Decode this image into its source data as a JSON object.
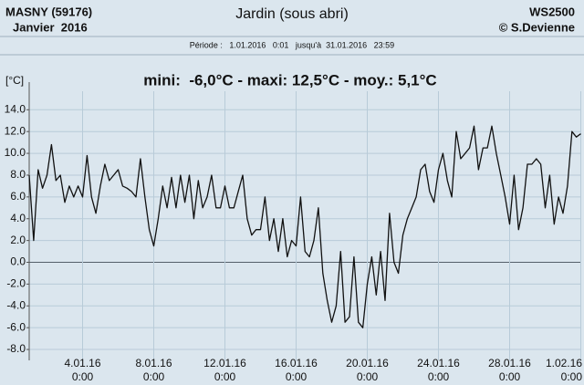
{
  "chart_data": {
    "type": "line",
    "station": "MASNY (59176)",
    "period_label": "Janvier  2016",
    "title": "Jardin (sous abri)",
    "device": "WS2500",
    "author": "© S.Devienne",
    "period": "Période :   1.01.2016   0:01   jusqu'à  31.01.2016   23:59",
    "subtitle": "mini:  -6,0°C - maxi: 12,5°C - moy.: 5,1°C",
    "y_label": "[°C]",
    "xlim": [
      "1.01.16 0:00",
      "1.02.16 0:00"
    ],
    "ylim": [
      -9,
      15.7
    ],
    "grid": true,
    "color": "#111111",
    "xticks": [
      "4.01.16 0:00",
      "8.01.16 0:00",
      "12.01.16 0:00",
      "16.01.16 0:00",
      "20.01.16 0:00",
      "24.01.16 0:00",
      "28.01.16 0:00",
      "1.02.16 0:00"
    ],
    "yticks": [
      {
        "value": 14,
        "label": "14.0"
      },
      {
        "value": 12,
        "label": "12.0"
      },
      {
        "value": 10,
        "label": "10.0"
      },
      {
        "value": 8,
        "label": "8.0"
      },
      {
        "value": 6,
        "label": "6.0"
      },
      {
        "value": 4,
        "label": "4.0"
      },
      {
        "value": 2,
        "label": "2.0"
      },
      {
        "value": 0,
        "label": "0.0"
      },
      {
        "value": -2,
        "label": "-2.0"
      },
      {
        "value": -4,
        "label": "-4.0"
      },
      {
        "value": -6,
        "label": "-6.0"
      },
      {
        "value": -8,
        "label": "-8.0"
      }
    ],
    "x": [
      "1.01.16 0:00",
      "1.01.16 6:00",
      "1.01.16 12:00",
      "1.01.16 18:00",
      "2.01.16 0:00",
      "2.01.16 6:00",
      "2.01.16 12:00",
      "2.01.16 18:00",
      "3.01.16 0:00",
      "3.01.16 6:00",
      "3.01.16 12:00",
      "3.01.16 18:00",
      "4.01.16 0:00",
      "4.01.16 6:00",
      "4.01.16 12:00",
      "4.01.16 18:00",
      "5.01.16 0:00",
      "5.01.16 6:00",
      "5.01.16 12:00",
      "5.01.16 18:00",
      "6.01.16 0:00",
      "6.01.16 6:00",
      "6.01.16 12:00",
      "6.01.16 18:00",
      "7.01.16 0:00",
      "7.01.16 6:00",
      "7.01.16 12:00",
      "7.01.16 18:00",
      "8.01.16 0:00",
      "8.01.16 6:00",
      "8.01.16 12:00",
      "8.01.16 18:00",
      "9.01.16 0:00",
      "9.01.16 6:00",
      "9.01.16 12:00",
      "9.01.16 18:00",
      "10.01.16 0:00",
      "10.01.16 6:00",
      "10.01.16 12:00",
      "10.01.16 18:00",
      "11.01.16 0:00",
      "11.01.16 6:00",
      "11.01.16 12:00",
      "11.01.16 18:00",
      "12.01.16 0:00",
      "12.01.16 6:00",
      "12.01.16 12:00",
      "12.01.16 18:00",
      "13.01.16 0:00",
      "13.01.16 6:00",
      "13.01.16 12:00",
      "13.01.16 18:00",
      "14.01.16 0:00",
      "14.01.16 6:00",
      "14.01.16 12:00",
      "14.01.16 18:00",
      "15.01.16 0:00",
      "15.01.16 6:00",
      "15.01.16 12:00",
      "15.01.16 18:00",
      "16.01.16 0:00",
      "16.01.16 6:00",
      "16.01.16 12:00",
      "16.01.16 18:00",
      "17.01.16 0:00",
      "17.01.16 6:00",
      "17.01.16 12:00",
      "17.01.16 18:00",
      "18.01.16 0:00",
      "18.01.16 6:00",
      "18.01.16 12:00",
      "18.01.16 18:00",
      "19.01.16 0:00",
      "19.01.16 6:00",
      "19.01.16 12:00",
      "19.01.16 18:00",
      "20.01.16 0:00",
      "20.01.16 6:00",
      "20.01.16 12:00",
      "20.01.16 18:00",
      "21.01.16 0:00",
      "21.01.16 6:00",
      "21.01.16 12:00",
      "21.01.16 18:00",
      "22.01.16 0:00",
      "22.01.16 6:00",
      "22.01.16 12:00",
      "22.01.16 18:00",
      "23.01.16 0:00",
      "23.01.16 6:00",
      "23.01.16 12:00",
      "23.01.16 18:00",
      "24.01.16 0:00",
      "24.01.16 6:00",
      "24.01.16 12:00",
      "24.01.16 18:00",
      "25.01.16 0:00",
      "25.01.16 6:00",
      "25.01.16 12:00",
      "25.01.16 18:00",
      "26.01.16 0:00",
      "26.01.16 6:00",
      "26.01.16 12:00",
      "26.01.16 18:00",
      "27.01.16 0:00",
      "27.01.16 6:00",
      "27.01.16 12:00",
      "27.01.16 18:00",
      "28.01.16 0:00",
      "28.01.16 6:00",
      "28.01.16 12:00",
      "28.01.16 18:00",
      "29.01.16 0:00",
      "29.01.16 6:00",
      "29.01.16 12:00",
      "29.01.16 18:00",
      "30.01.16 0:00",
      "30.01.16 6:00",
      "30.01.16 12:00",
      "30.01.16 18:00",
      "31.01.16 0:00",
      "31.01.16 6:00",
      "31.01.16 12:00",
      "31.01.16 18:00",
      "1.02.16 0:00"
    ],
    "values": [
      8,
      2,
      8.5,
      6.8,
      8,
      10.8,
      7.5,
      8,
      5.5,
      7,
      6,
      7,
      6,
      9.8,
      6,
      4.5,
      7,
      9,
      7.5,
      8,
      8.5,
      7,
      6.8,
      6.5,
      6,
      9.5,
      6,
      3,
      1.5,
      4,
      7,
      5,
      7.8,
      5,
      8,
      5.5,
      8,
      4,
      7.5,
      5,
      6,
      8,
      5,
      5,
      7,
      5,
      5,
      6.5,
      8,
      4,
      2.5,
      3,
      3,
      6,
      2,
      4,
      1,
      4,
      0.5,
      2,
      1.5,
      6,
      1,
      0.5,
      2,
      5,
      -1,
      -3.5,
      -5.5,
      -4,
      1,
      -5.5,
      -5,
      0.5,
      -5.5,
      -6,
      -2,
      0.5,
      -3,
      1,
      -3.5,
      4.5,
      0,
      -1,
      2.5,
      4,
      5,
      6,
      8.5,
      9,
      6.5,
      5.5,
      8.5,
      10,
      7.5,
      6,
      12,
      9.5,
      10,
      10.5,
      12.5,
      8.5,
      10.5,
      10.5,
      12.5,
      10,
      8,
      6,
      3.5,
      8,
      3,
      5,
      9,
      9,
      9.5,
      9,
      5,
      8,
      3.5,
      6,
      4.5,
      7,
      12,
      11.5,
      11.8
    ]
  }
}
